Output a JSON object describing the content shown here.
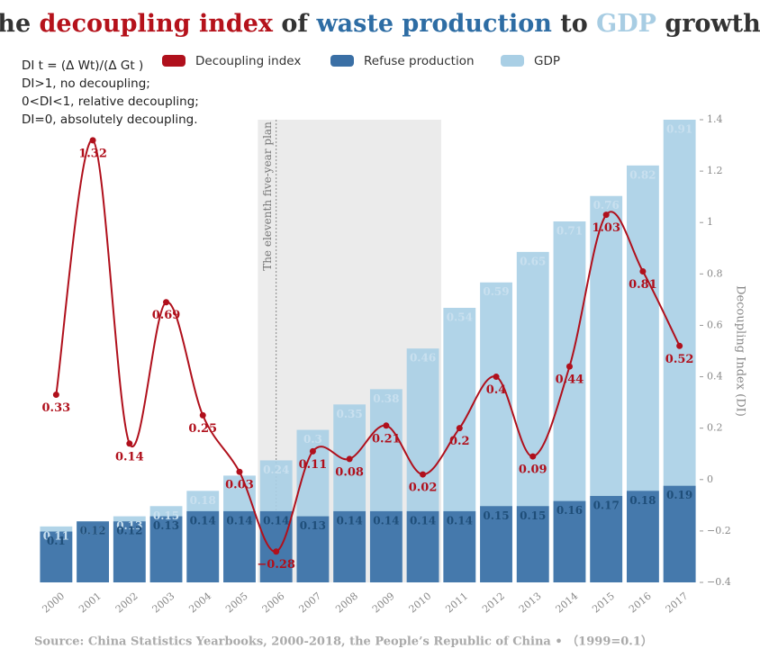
{
  "chart_data": {
    "type": "bar-line",
    "title_parts": [
      {
        "text": "The ",
        "color": "#333333"
      },
      {
        "text": "decoupling index",
        "color": "#b5121b"
      },
      {
        "text": " of ",
        "color": "#333333"
      },
      {
        "text": "waste production",
        "color": "#2e6da4"
      },
      {
        "text": " to ",
        "color": "#333333"
      },
      {
        "text": "GDP",
        "color": "#a8cde3"
      },
      {
        "text": " growth",
        "color": "#333333"
      }
    ],
    "annotations": [
      "DI t = (Δ Wt)/(Δ Gt )",
      "DI>1, no decoupling;",
      "0<DI<1, relative decoupling;",
      "DI=0, absolutely decoupling."
    ],
    "shaded_range": {
      "from": "2006",
      "to": "2010",
      "label": "The eleventh five-year plan"
    },
    "source": "Source: China Statistics Yearbooks, 2000-2018, the People’s Republic of China •  （1999=0.1）",
    "y_label": "Decoupling Index (DI)",
    "categories": [
      "2000",
      "2001",
      "2002",
      "2003",
      "2004",
      "2005",
      "2006",
      "2007",
      "2008",
      "2009",
      "2010",
      "2011",
      "2012",
      "2013",
      "2014",
      "2015",
      "2016",
      "2017"
    ],
    "ylim": [
      -0.4,
      1.4
    ],
    "yticks": [
      {
        "value": -0.4,
        "label": "−0.4"
      },
      {
        "value": -0.2,
        "label": "−0.2"
      },
      0,
      0.2,
      0.4,
      0.6,
      0.8,
      1,
      1.2,
      1.4
    ],
    "y2lim": [
      0,
      0.91
    ],
    "series": [
      {
        "name": "Decoupling index",
        "type": "line",
        "color": "#b0101c",
        "values": [
          0.33,
          1.32,
          0.14,
          0.69,
          0.25,
          0.03,
          -0.28,
          0.11,
          0.08,
          0.21,
          0.02,
          0.2,
          0.4,
          0.09,
          0.44,
          1.03,
          0.81,
          0.52
        ],
        "value_labels": [
          "0.33",
          "1.32",
          "0.14",
          "0.69",
          "0.25",
          "0.03",
          "−0.28",
          "0.11",
          "0.08",
          "0.21",
          "0.02",
          "0.2",
          "0.4",
          "0.09",
          "0.44",
          "1.03",
          "0.81",
          "0.52"
        ]
      },
      {
        "name": "Refuse production",
        "type": "bar",
        "axis": "y2",
        "color": "#3a6fa5",
        "label_color": "#1f4e79",
        "values": [
          0.1,
          0.12,
          0.12,
          0.13,
          0.14,
          0.14,
          0.14,
          0.13,
          0.14,
          0.14,
          0.14,
          0.14,
          0.15,
          0.15,
          0.16,
          0.17,
          0.18,
          0.19
        ]
      },
      {
        "name": "GDP",
        "type": "bar",
        "axis": "y2",
        "color": "#a9cfe5",
        "label_color": "#c9e0ef",
        "values": [
          0.11,
          0.12,
          0.13,
          0.15,
          0.18,
          0.21,
          0.24,
          0.3,
          0.35,
          0.38,
          0.46,
          0.54,
          0.59,
          0.65,
          0.71,
          0.76,
          0.82,
          0.91
        ]
      }
    ]
  }
}
